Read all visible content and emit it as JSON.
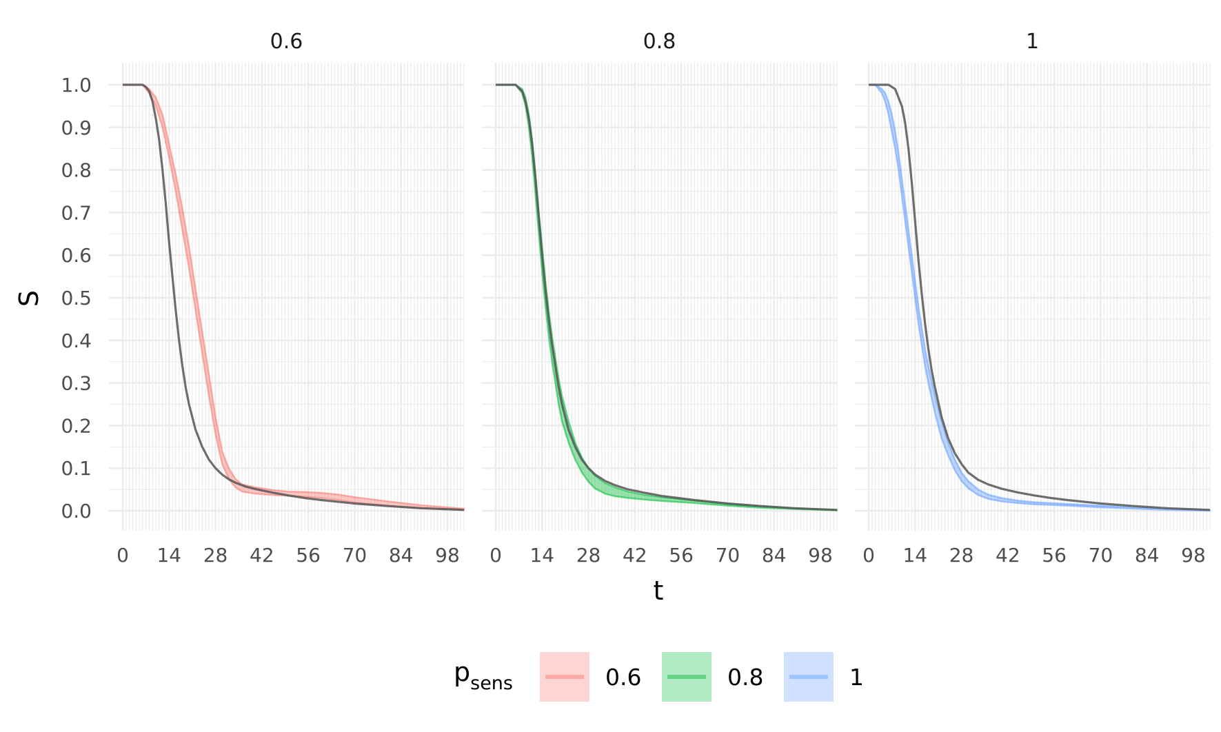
{
  "chart_data": {
    "type": "line",
    "facet_titles": [
      "0.6",
      "0.8",
      "1"
    ],
    "xlabel": "t",
    "ylabel": "S",
    "xlim": [
      0,
      103
    ],
    "ylim": [
      0,
      1
    ],
    "x_ticks": [
      "0",
      "14",
      "28",
      "42",
      "56",
      "70",
      "84",
      "98"
    ],
    "y_ticks": [
      "0.0",
      "0.1",
      "0.2",
      "0.3",
      "0.4",
      "0.5",
      "0.6",
      "0.7",
      "0.8",
      "0.9",
      "1.0"
    ],
    "grid": true,
    "legend": {
      "title_main": "p",
      "title_sub": "sens",
      "placement": "bottom",
      "entries": [
        "0.6",
        "0.8",
        "1"
      ]
    },
    "colors": {
      "0.6": "#F8766D",
      "0.8": "#00BA38",
      "1": "#619CFF",
      "reference": "#555555"
    },
    "panels": [
      {
        "facet": "0.6",
        "series": [
          {
            "name": "0.6",
            "x": [
              0,
              4,
              6,
              8,
              10,
              12,
              14,
              16,
              18,
              20,
              22,
              24,
              26,
              28,
              30,
              32,
              34,
              36,
              40,
              45,
              50,
              55,
              60,
              65,
              70,
              80,
              90,
              103
            ],
            "upper": [
              1.0,
              1.0,
              1.0,
              0.99,
              0.97,
              0.93,
              0.86,
              0.79,
              0.71,
              0.62,
              0.52,
              0.42,
              0.32,
              0.22,
              0.14,
              0.1,
              0.075,
              0.062,
              0.055,
              0.049,
              0.045,
              0.044,
              0.042,
              0.038,
              0.032,
              0.022,
              0.013,
              0.005
            ],
            "lower": [
              1.0,
              1.0,
              1.0,
              0.98,
              0.95,
              0.9,
              0.83,
              0.75,
              0.66,
              0.57,
              0.47,
              0.37,
              0.27,
              0.18,
              0.11,
              0.075,
              0.055,
              0.045,
              0.04,
              0.037,
              0.035,
              0.033,
              0.03,
              0.025,
              0.019,
              0.012,
              0.006,
              0.002
            ]
          },
          {
            "name": "reference",
            "x": [
              0,
              4,
              6,
              7,
              8,
              9,
              10,
              11,
              12,
              13,
              14,
              15,
              16,
              17,
              18,
              19,
              20,
              22,
              24,
              26,
              28,
              30,
              32,
              34,
              37,
              40,
              45,
              50,
              55,
              60,
              70,
              80,
              90,
              103
            ],
            "values": [
              1.0,
              1.0,
              1.0,
              0.995,
              0.985,
              0.96,
              0.92,
              0.87,
              0.8,
              0.72,
              0.63,
              0.55,
              0.47,
              0.4,
              0.34,
              0.29,
              0.25,
              0.19,
              0.15,
              0.12,
              0.1,
              0.085,
              0.074,
              0.066,
              0.057,
              0.051,
              0.043,
              0.036,
              0.03,
              0.025,
              0.017,
              0.011,
              0.006,
              0.002
            ]
          }
        ]
      },
      {
        "facet": "0.8",
        "series": [
          {
            "name": "0.8",
            "x": [
              0,
              4,
              6,
              8,
              9,
              10,
              11,
              12,
              13,
              14,
              15,
              16,
              17,
              18,
              19,
              20,
              22,
              24,
              26,
              28,
              30,
              33,
              36,
              40,
              45,
              50,
              60,
              70,
              80,
              90,
              103
            ],
            "upper": [
              1.0,
              1.0,
              1.0,
              0.99,
              0.97,
              0.93,
              0.87,
              0.79,
              0.7,
              0.62,
              0.54,
              0.47,
              0.41,
              0.36,
              0.31,
              0.27,
              0.21,
              0.16,
              0.125,
              0.1,
              0.082,
              0.065,
              0.055,
              0.045,
              0.037,
              0.032,
              0.024,
              0.016,
              0.01,
              0.006,
              0.002
            ],
            "lower": [
              1.0,
              1.0,
              1.0,
              0.98,
              0.95,
              0.9,
              0.83,
              0.74,
              0.65,
              0.56,
              0.48,
              0.41,
              0.35,
              0.3,
              0.25,
              0.21,
              0.16,
              0.12,
              0.09,
              0.068,
              0.052,
              0.04,
              0.034,
              0.03,
              0.026,
              0.023,
              0.018,
              0.012,
              0.007,
              0.004,
              0.001
            ]
          },
          {
            "name": "reference",
            "x": [
              0,
              4,
              6,
              8,
              9,
              10,
              11,
              12,
              13,
              14,
              15,
              16,
              17,
              18,
              19,
              20,
              22,
              24,
              26,
              28,
              30,
              33,
              36,
              40,
              45,
              50,
              55,
              60,
              70,
              80,
              90,
              103
            ],
            "values": [
              1.0,
              1.0,
              1.0,
              0.985,
              0.96,
              0.92,
              0.86,
              0.78,
              0.69,
              0.6,
              0.52,
              0.45,
              0.39,
              0.34,
              0.29,
              0.25,
              0.19,
              0.15,
              0.12,
              0.1,
              0.085,
              0.07,
              0.06,
              0.05,
              0.042,
              0.035,
              0.03,
              0.025,
              0.017,
              0.011,
              0.006,
              0.002
            ]
          }
        ]
      },
      {
        "facet": "1",
        "series": [
          {
            "name": "1",
            "x": [
              0,
              2,
              4,
              5,
              6,
              7,
              8,
              9,
              10,
              11,
              12,
              13,
              14,
              15,
              16,
              17,
              18,
              20,
              22,
              24,
              26,
              28,
              30,
              33,
              36,
              40,
              45,
              50,
              60,
              70,
              80,
              90,
              103
            ],
            "upper": [
              1.0,
              1.0,
              0.99,
              0.98,
              0.96,
              0.93,
              0.89,
              0.84,
              0.78,
              0.72,
              0.66,
              0.6,
              0.54,
              0.48,
              0.43,
              0.38,
              0.34,
              0.27,
              0.21,
              0.16,
              0.12,
              0.09,
              0.07,
              0.05,
              0.038,
              0.03,
              0.024,
              0.02,
              0.016,
              0.012,
              0.008,
              0.004,
              0.001
            ],
            "lower": [
              1.0,
              1.0,
              0.98,
              0.96,
              0.93,
              0.89,
              0.85,
              0.8,
              0.74,
              0.68,
              0.62,
              0.56,
              0.5,
              0.44,
              0.39,
              0.34,
              0.3,
              0.23,
              0.17,
              0.13,
              0.095,
              0.07,
              0.053,
              0.037,
              0.028,
              0.022,
              0.018,
              0.015,
              0.012,
              0.008,
              0.005,
              0.002,
              0.0
            ]
          },
          {
            "name": "reference",
            "x": [
              0,
              4,
              6,
              8,
              10,
              11,
              12,
              13,
              14,
              15,
              16,
              17,
              18,
              19,
              20,
              22,
              24,
              26,
              28,
              30,
              33,
              36,
              40,
              45,
              50,
              55,
              60,
              70,
              80,
              90,
              103
            ],
            "values": [
              1.0,
              1.0,
              1.0,
              0.99,
              0.95,
              0.91,
              0.85,
              0.77,
              0.68,
              0.59,
              0.51,
              0.44,
              0.38,
              0.33,
              0.29,
              0.22,
              0.17,
              0.135,
              0.11,
              0.09,
              0.073,
              0.062,
              0.052,
              0.043,
              0.036,
              0.03,
              0.025,
              0.017,
              0.011,
              0.006,
              0.002
            ]
          }
        ]
      }
    ]
  }
}
